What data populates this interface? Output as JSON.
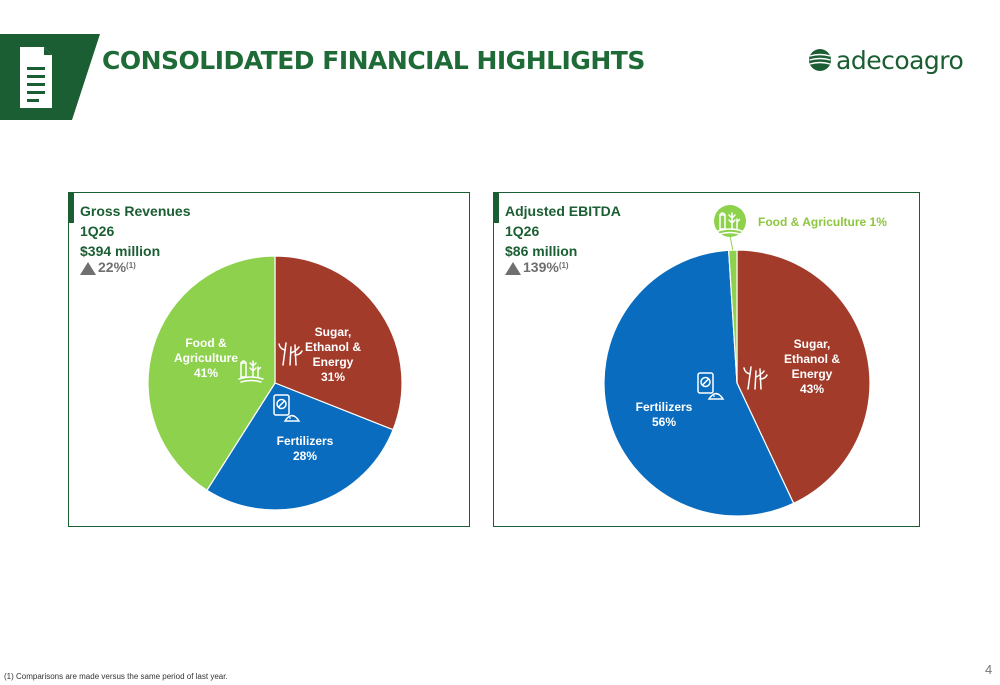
{
  "header": {
    "title": "CONSOLIDATED FINANCIAL HIGHLIGHTS",
    "brand": "adecoagro",
    "brand_color": "#1b5e33",
    "accent_color": "#1e6b38",
    "document_icon": "document-icon"
  },
  "colors": {
    "sugar": "#a33b2b",
    "fertilizers": "#0a6cbf",
    "food": "#8ed14d"
  },
  "chart_data": [
    {
      "type": "pie",
      "title": "Gross Revenues",
      "period": "1Q26",
      "total": "$394 million",
      "change": "22%",
      "change_note": "(1)",
      "slices": [
        {
          "label": "Sugar, Ethanol & Energy",
          "value": 31,
          "value_label": "31%",
          "color": "#a33b2b",
          "icon": "sugarcane-icon"
        },
        {
          "label": "Fertilizers",
          "value": 28,
          "value_label": "28%",
          "color": "#0a6cbf",
          "icon": "fertilizer-bag-icon"
        },
        {
          "label": "Food & Agriculture",
          "value": 41,
          "value_label": "41%",
          "color": "#8ed14d",
          "icon": "farm-icon"
        }
      ]
    },
    {
      "type": "pie",
      "title": "Adjusted EBITDA",
      "period": "1Q26",
      "total": "$86 million",
      "change": "139%",
      "change_note": "(1)",
      "slices": [
        {
          "label": "Sugar, Ethanol & Energy",
          "value": 43,
          "value_label": "43%",
          "color": "#a33b2b",
          "icon": "sugarcane-icon"
        },
        {
          "label": "Fertilizers",
          "value": 56,
          "value_label": "56%",
          "color": "#0a6cbf",
          "icon": "fertilizer-bag-icon"
        },
        {
          "label": "Food & Agriculture",
          "value": 1,
          "value_label": "1%",
          "color": "#8ed14d",
          "icon": "farm-icon",
          "callout": "Food & Agriculture 1%"
        }
      ]
    }
  ],
  "footnote": "(1) Comparisons are made versus the same period of last year.",
  "page_number": "4"
}
